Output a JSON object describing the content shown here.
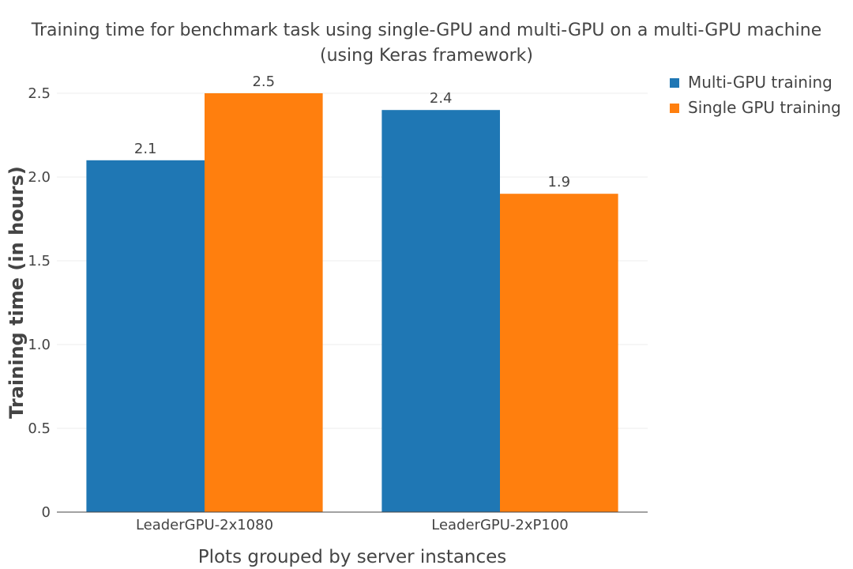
{
  "chart_data": {
    "type": "bar",
    "title": "Training time for benchmark task using single-GPU and multi-GPU on a multi-GPU machine",
    "subtitle": "(using Keras framework)",
    "xlabel": "Plots grouped by server instances",
    "ylabel": "Training time (in hours)",
    "categories": [
      "LeaderGPU-2x1080",
      "LeaderGPU-2xP100"
    ],
    "series": [
      {
        "name": "Multi-GPU training",
        "values": [
          2.1,
          2.4
        ],
        "color": "#1f77b4"
      },
      {
        "name": "Single GPU training",
        "values": [
          2.5,
          1.9
        ],
        "color": "#ff7f0e"
      }
    ],
    "ylim": [
      0,
      2.5
    ],
    "yticks": [
      0,
      0.5,
      1.0,
      1.5,
      2.0,
      2.5
    ],
    "ytick_labels": [
      "0",
      "0.5",
      "1.0",
      "1.5",
      "2.0",
      "2.5"
    ],
    "grid": true,
    "legend_position": "top-right",
    "data_labels": [
      "2.1",
      "2.5",
      "2.4",
      "1.9"
    ]
  }
}
